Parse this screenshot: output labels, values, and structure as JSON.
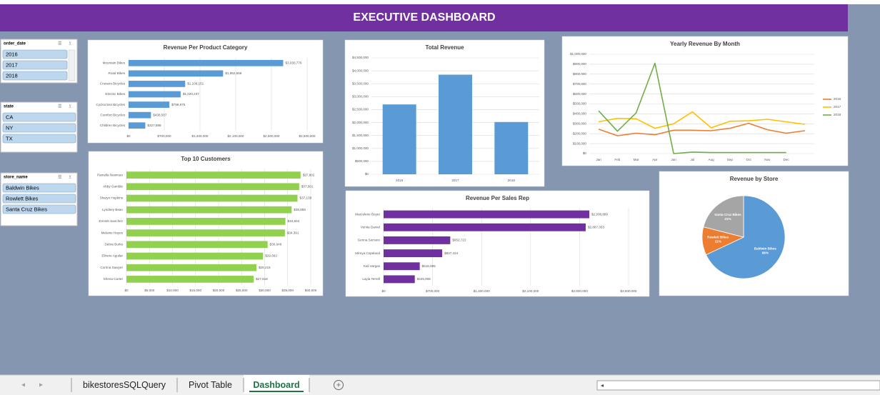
{
  "title": "EXECUTIVE DASHBOARD",
  "slicers": [
    {
      "title": "order_date",
      "items": [
        "2016",
        "2017",
        "2018"
      ]
    },
    {
      "title": "state",
      "items": [
        "CA",
        "NY",
        "TX"
      ]
    },
    {
      "title": "store_name",
      "items": [
        "Baldwin Bikes",
        "Rowlett Bikes",
        "Santa Cruz Bikes"
      ]
    }
  ],
  "tabs": [
    "bikestoresSQLQuery",
    "Pivot Table",
    "Dashboard"
  ],
  "chart_data": [
    {
      "type": "bar",
      "orientation": "horizontal",
      "title": "Revenue Per Product Category",
      "color": "#5b9bd5",
      "grid": true,
      "categories": [
        "Mountain Bikes",
        "Road Bikes",
        "Cruisers Bicycles",
        "Electric Bikes",
        "Cyclocross Bicycles",
        "Comfort Bicycles",
        "Children Bicycles"
      ],
      "values": [
        3030776,
        1852556,
        1109151,
        1020237,
        799875,
        438507,
        327888
      ],
      "value_labels": [
        "$3,030,776",
        "$1,852,556",
        "$1,109,151",
        "$1,020,237",
        "$799,875",
        "$438,507",
        "$327,888"
      ],
      "xlim": [
        0,
        3500000
      ],
      "xticks": [
        {
          "value": 0,
          "label": "$0"
        },
        {
          "value": 700000,
          "label": "$700,000"
        },
        {
          "value": 1400000,
          "label": "$1,400,000"
        },
        {
          "value": 2100000,
          "label": "$2,100,000"
        },
        {
          "value": 2800000,
          "label": "$2,800,000"
        },
        {
          "value": 3500000,
          "label": "$3,500,000"
        }
      ]
    },
    {
      "type": "bar",
      "orientation": "horizontal",
      "title": "Top 10 Customers",
      "color": "#92d050",
      "grid": true,
      "categories": [
        "Pamelia Newman",
        "Abby Gamble",
        "Sharyn Hopkins",
        "Lyndsey Bean",
        "Emmitt Sanchez",
        "Melanie Hayes",
        "Debra Burks",
        "Elinore Aguilar",
        "Corrina Sawyer",
        "Shena Carter"
      ],
      "values": [
        37802,
        37501,
        37139,
        35858,
        34504,
        34391,
        30646,
        29662,
        28215,
        27618
      ],
      "value_labels": [
        "$37,802",
        "$37,501",
        "$37,139",
        "$35,858",
        "$34,504",
        "$34,391",
        "$30,646",
        "$29,662",
        "$28,215",
        "$27,618"
      ],
      "xlim": [
        0,
        40000
      ],
      "xticks": [
        {
          "value": 0,
          "label": "$0"
        },
        {
          "value": 5000,
          "label": "$5,000"
        },
        {
          "value": 10000,
          "label": "$10,000"
        },
        {
          "value": 15000,
          "label": "$15,000"
        },
        {
          "value": 20000,
          "label": "$20,000"
        },
        {
          "value": 25000,
          "label": "$25,000"
        },
        {
          "value": 30000,
          "label": "$30,000"
        },
        {
          "value": 35000,
          "label": "$35,000"
        },
        {
          "value": 40000,
          "label": "$40,000"
        }
      ]
    },
    {
      "type": "bar",
      "orientation": "vertical",
      "title": "Total Revenue",
      "color": "#5b9bd5",
      "grid": true,
      "categories": [
        "2016",
        "2017",
        "2018"
      ],
      "values": [
        2700000,
        3850000,
        2020000
      ],
      "ylim": [
        0,
        4500000
      ],
      "yticks": [
        {
          "value": 0,
          "label": "$0"
        },
        {
          "value": 500000,
          "label": "$500,000"
        },
        {
          "value": 1000000,
          "label": "$1,000,000"
        },
        {
          "value": 1500000,
          "label": "$1,500,000"
        },
        {
          "value": 2000000,
          "label": "$2,000,000"
        },
        {
          "value": 2500000,
          "label": "$2,500,000"
        },
        {
          "value": 3000000,
          "label": "$3,000,000"
        },
        {
          "value": 3500000,
          "label": "$3,500,000"
        },
        {
          "value": 4000000,
          "label": "$4,000,000"
        },
        {
          "value": 4500000,
          "label": "$4,500,000"
        }
      ]
    },
    {
      "type": "bar",
      "orientation": "horizontal",
      "title": "Revenue Per  Sales Rep",
      "color": "#7030a0",
      "grid": true,
      "categories": [
        "Marcelene Boyer",
        "Venita Daniel",
        "Genna Serrano",
        "Mireya Copeland",
        "Kali Vargas",
        "Layla Terrell"
      ],
      "values": [
        2938889,
        2887353,
        952722,
        837424,
        516695,
        445906
      ],
      "value_labels": [
        "$2,938,889",
        "$2,887,353",
        "$952,722",
        "$837,424",
        "$516,695",
        "$445,906"
      ],
      "xlim": [
        0,
        3500000
      ],
      "xticks": [
        {
          "value": 0,
          "label": "$0"
        },
        {
          "value": 700000,
          "label": "$700,000"
        },
        {
          "value": 1400000,
          "label": "$1,400,000"
        },
        {
          "value": 2100000,
          "label": "$2,100,000"
        },
        {
          "value": 2800000,
          "label": "$2,800,000"
        },
        {
          "value": 3500000,
          "label": "$3,500,000"
        }
      ]
    },
    {
      "type": "line",
      "title": "Yearly Revenue By Month",
      "grid": true,
      "legend": "right",
      "categories": [
        "Jan",
        "Feb",
        "Mar",
        "Apr",
        "Jun",
        "Jul",
        "Aug",
        "Sep",
        "Oct",
        "Nov",
        "Dec",
        null
      ],
      "series": [
        {
          "name": "2016",
          "color": "#ed7d31",
          "values": [
            245000,
            180000,
            205000,
            190000,
            235000,
            235000,
            230000,
            255000,
            305000,
            240000,
            205000,
            230000
          ]
        },
        {
          "name": "2017",
          "color": "#ffc000",
          "values": [
            320000,
            355000,
            350000,
            255000,
            300000,
            420000,
            260000,
            325000,
            330000,
            345000,
            320000,
            295000
          ]
        },
        {
          "name": "2018",
          "color": "#70ad47",
          "values": [
            430000,
            225000,
            410000,
            910000,
            0,
            15000,
            10000,
            10000,
            10000,
            10000,
            10000,
            null
          ]
        }
      ],
      "ylim": [
        0,
        1000000
      ],
      "yticks": [
        {
          "value": 0,
          "label": "$0"
        },
        {
          "value": 100000,
          "label": "$100,000"
        },
        {
          "value": 200000,
          "label": "$200,000"
        },
        {
          "value": 300000,
          "label": "$300,000"
        },
        {
          "value": 400000,
          "label": "$400,000"
        },
        {
          "value": 500000,
          "label": "$500,000"
        },
        {
          "value": 600000,
          "label": "$600,000"
        },
        {
          "value": 700000,
          "label": "$700,000"
        },
        {
          "value": 800000,
          "label": "$800,000"
        },
        {
          "value": 900000,
          "label": "$900,000"
        },
        {
          "value": 1000000,
          "label": "$1,000,000"
        }
      ]
    },
    {
      "type": "pie",
      "title": "Revenue by Store",
      "categories": [
        "Baldwin Bikes",
        "Rowlett Bikes",
        "Santa Cruz Bikes"
      ],
      "values": [
        68,
        11,
        21
      ],
      "value_labels": [
        "68%",
        "11%",
        "21%"
      ],
      "colors": [
        "#5b9bd5",
        "#ed7d31",
        "#a5a5a5"
      ]
    }
  ]
}
